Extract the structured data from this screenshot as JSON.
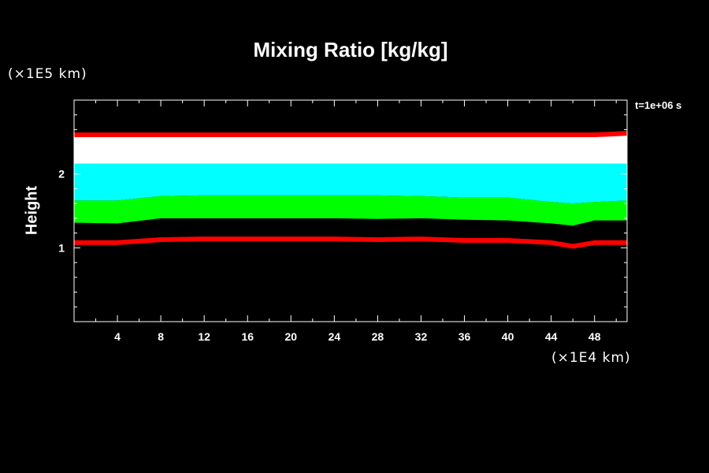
{
  "chart_data": {
    "type": "area",
    "title": "Mixing Ratio [kg/kg]",
    "ylabel": "Height",
    "y_unit": "(×1E5 km)",
    "x_unit": "(×1E4 km)",
    "time_label": "t=1e+06 s",
    "xlim": [
      0,
      51
    ],
    "ylim": [
      0,
      3
    ],
    "x_ticks": [
      "4",
      "8",
      "12",
      "16",
      "20",
      "24",
      "28",
      "32",
      "36",
      "40",
      "44",
      "48"
    ],
    "y_ticks": [
      "1",
      "2"
    ],
    "x_tick_values": [
      4,
      8,
      12,
      16,
      20,
      24,
      28,
      32,
      36,
      40,
      44,
      48
    ],
    "y_tick_values": [
      1,
      2
    ],
    "y_minor_step": 0.2,
    "x_minor_step": 2,
    "background": "#000000",
    "x": [
      0,
      4,
      8,
      12,
      16,
      20,
      24,
      28,
      32,
      36,
      40,
      44,
      46,
      48,
      51
    ],
    "bands": [
      {
        "color": "#ffffff",
        "lower": [
          2.14,
          2.14,
          2.14,
          2.14,
          2.14,
          2.14,
          2.14,
          2.14,
          2.14,
          2.14,
          2.14,
          2.14,
          2.14,
          2.14,
          2.14
        ],
        "upper": [
          2.52,
          2.52,
          2.52,
          2.52,
          2.52,
          2.52,
          2.52,
          2.52,
          2.52,
          2.52,
          2.52,
          2.52,
          2.52,
          2.52,
          2.52
        ]
      },
      {
        "color": "#00ffff",
        "lower": [
          1.64,
          1.64,
          1.7,
          1.71,
          1.71,
          1.71,
          1.71,
          1.71,
          1.7,
          1.68,
          1.68,
          1.62,
          1.6,
          1.62,
          1.64
        ],
        "upper": [
          2.14,
          2.14,
          2.14,
          2.14,
          2.14,
          2.14,
          2.14,
          2.14,
          2.14,
          2.14,
          2.14,
          2.14,
          2.14,
          2.14,
          2.14
        ]
      },
      {
        "color": "#00ff00",
        "lower": [
          1.34,
          1.33,
          1.4,
          1.4,
          1.4,
          1.4,
          1.4,
          1.39,
          1.4,
          1.38,
          1.37,
          1.33,
          1.3,
          1.37,
          1.37
        ],
        "upper": [
          1.64,
          1.64,
          1.7,
          1.71,
          1.71,
          1.71,
          1.71,
          1.71,
          1.7,
          1.68,
          1.68,
          1.62,
          1.6,
          1.62,
          1.64
        ]
      }
    ],
    "lines": [
      {
        "color": "#ff0000",
        "y": [
          2.53,
          2.53,
          2.53,
          2.53,
          2.53,
          2.53,
          2.53,
          2.53,
          2.53,
          2.53,
          2.53,
          2.53,
          2.53,
          2.53,
          2.55
        ]
      },
      {
        "color": "#ff0000",
        "y": [
          1.07,
          1.07,
          1.11,
          1.12,
          1.12,
          1.12,
          1.12,
          1.11,
          1.12,
          1.1,
          1.1,
          1.07,
          1.02,
          1.07,
          1.07
        ]
      }
    ]
  }
}
